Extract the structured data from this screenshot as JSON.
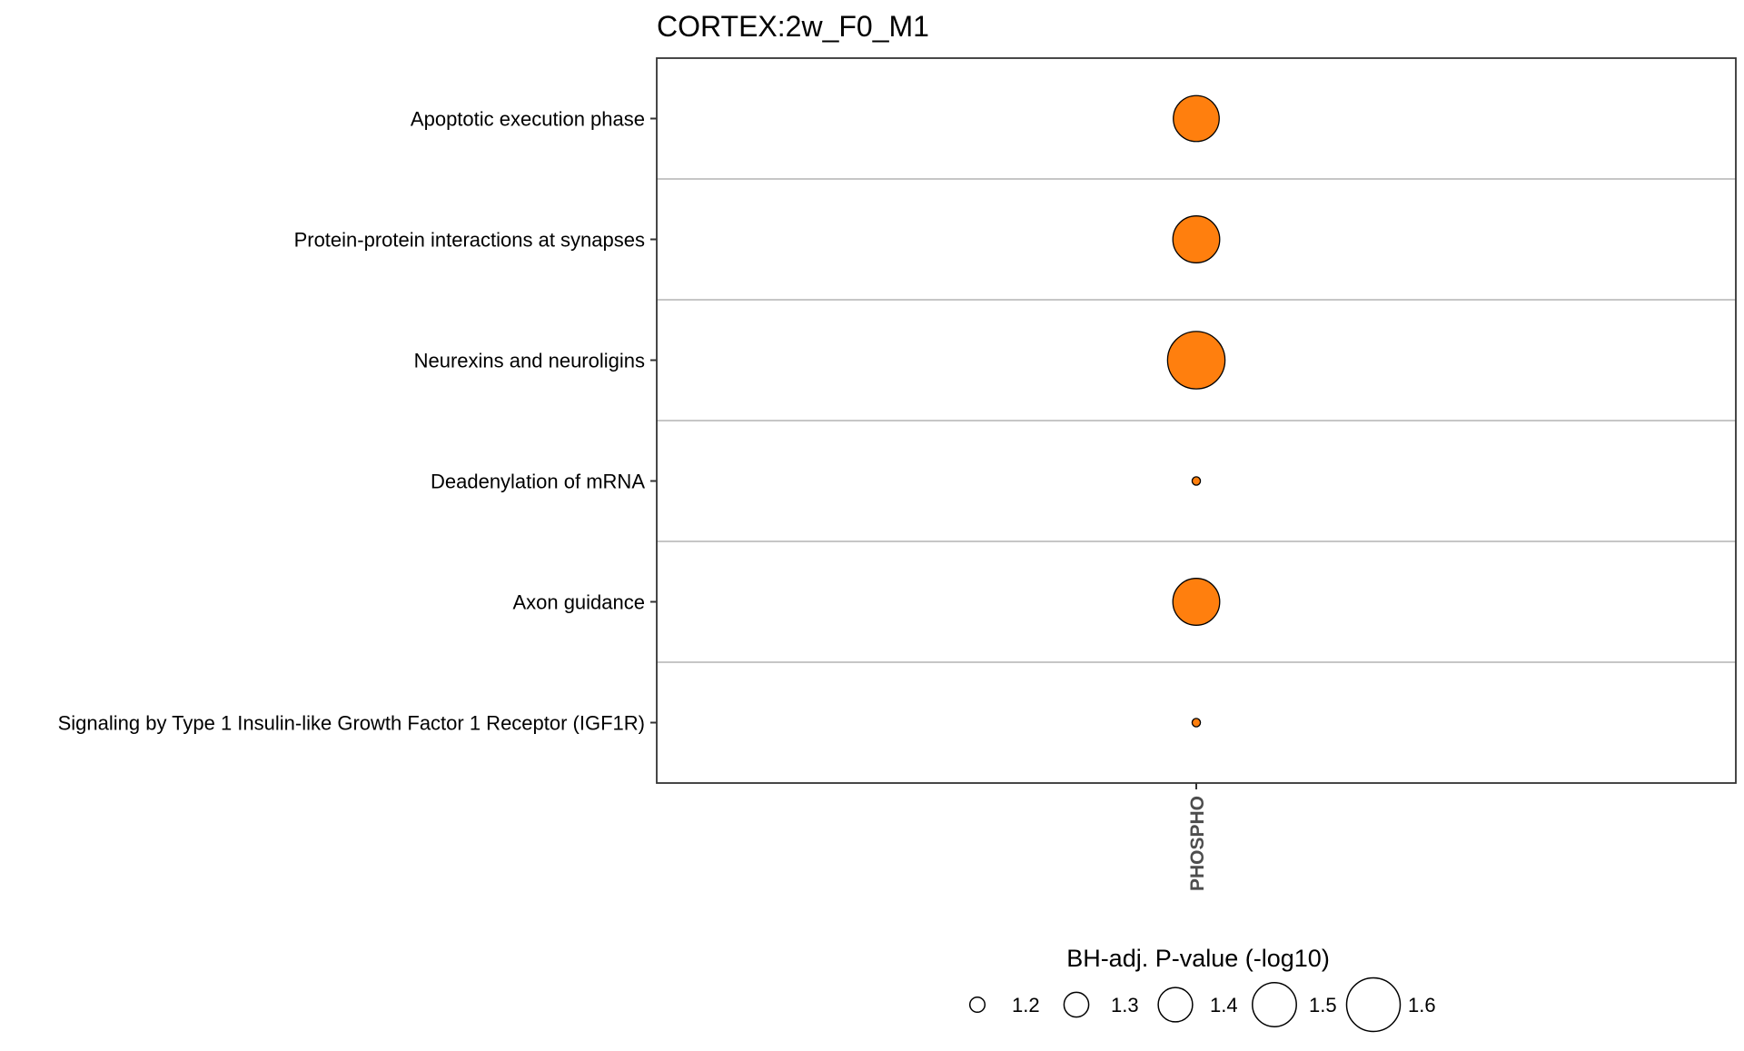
{
  "chart_data": {
    "type": "scatter",
    "title": "CORTEX:2w_F0_M1",
    "x_categories": [
      "PHOSPHO"
    ],
    "y_categories": [
      "Apoptotic execution phase",
      "Protein-protein interactions at synapses",
      "Neurexins and neuroligins",
      "Deadenylation of mRNA",
      "Axon guidance",
      "Signaling by Type 1 Insulin-like Growth Factor 1 Receptor (IGF1R)"
    ],
    "points": [
      {
        "x": "PHOSPHO",
        "y": "Apoptotic execution phase",
        "size_value": 1.52
      },
      {
        "x": "PHOSPHO",
        "y": "Protein-protein interactions at synapses",
        "size_value": 1.53
      },
      {
        "x": "PHOSPHO",
        "y": "Neurexins and neuroligins",
        "size_value": 1.64
      },
      {
        "x": "PHOSPHO",
        "y": "Deadenylation of mRNA",
        "size_value": 1.13
      },
      {
        "x": "PHOSPHO",
        "y": "Axon guidance",
        "size_value": 1.53
      },
      {
        "x": "PHOSPHO",
        "y": "Signaling by Type 1 Insulin-like Growth Factor 1 Receptor (IGF1R)",
        "size_value": 1.13
      }
    ],
    "point_color": "#FF7F0E",
    "point_stroke": "#000000",
    "grid": "horizontal",
    "size_legend": {
      "title": "BH-adj. P-value (-log10)",
      "position": "bottom",
      "values": [
        1.2,
        1.3,
        1.4,
        1.5,
        1.6
      ],
      "labels": [
        "1.2",
        "1.3",
        "1.4",
        "1.5",
        "1.6"
      ]
    }
  }
}
